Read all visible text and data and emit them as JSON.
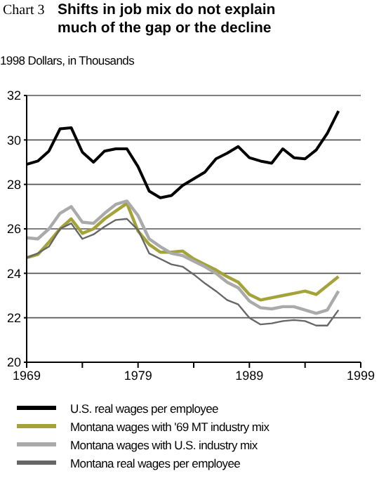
{
  "chart_data": {
    "type": "line",
    "title": "Shifts in job mix do not explain much of the gap or the decline",
    "annotations": [
      "Chart 3"
    ],
    "ylabel": "1998 Dollars, in Thousands",
    "x": [
      1969,
      1970,
      1971,
      1972,
      1973,
      1974,
      1975,
      1976,
      1977,
      1978,
      1979,
      1980,
      1981,
      1982,
      1983,
      1984,
      1985,
      1986,
      1987,
      1988,
      1989,
      1990,
      1991,
      1992,
      1993,
      1994,
      1995,
      1996,
      1997
    ],
    "series": [
      {
        "name": "U.S. real wages  per employee",
        "color": "#000000",
        "values": [
          28.9,
          29.05,
          29.5,
          30.5,
          30.55,
          29.45,
          29.0,
          29.5,
          29.6,
          29.6,
          28.8,
          27.7,
          27.4,
          27.5,
          27.95,
          28.25,
          28.55,
          29.15,
          29.4,
          29.7,
          29.2,
          29.05,
          28.95,
          29.6,
          29.2,
          29.15,
          29.55,
          30.3,
          31.3
        ]
      },
      {
        "name": "Montana wages with '69 MT industry mix",
        "color": "#a3a33a",
        "values": [
          24.7,
          24.85,
          25.4,
          26.0,
          26.45,
          25.8,
          26.0,
          26.45,
          26.8,
          27.15,
          25.9,
          25.3,
          24.95,
          24.95,
          25.0,
          24.65,
          24.4,
          24.15,
          23.85,
          23.6,
          23.05,
          22.8,
          22.9,
          23.0,
          23.1,
          23.2,
          23.05,
          23.45,
          23.85
        ]
      },
      {
        "name": "Montana wages with  U.S. industry mix",
        "color": "#aaaaaa",
        "values": [
          25.6,
          25.55,
          26.0,
          26.7,
          27.0,
          26.3,
          26.25,
          26.7,
          27.1,
          27.25,
          26.6,
          25.55,
          25.2,
          24.9,
          24.8,
          24.55,
          24.3,
          24.0,
          23.6,
          23.35,
          22.75,
          22.45,
          22.4,
          22.5,
          22.5,
          22.35,
          22.2,
          22.35,
          23.2
        ]
      },
      {
        "name": "Montana real wages per employee",
        "color": "#666666",
        "values": [
          24.7,
          24.9,
          25.2,
          26.0,
          26.25,
          25.55,
          25.75,
          26.1,
          26.4,
          26.45,
          25.95,
          24.9,
          24.65,
          24.4,
          24.3,
          23.95,
          23.55,
          23.2,
          22.8,
          22.6,
          22.0,
          21.7,
          21.75,
          21.85,
          21.9,
          21.85,
          21.65,
          21.65,
          22.35
        ]
      }
    ],
    "xlim": [
      1969,
      1999
    ],
    "xticks": [
      1969,
      {
        "value": 1974,
        "label": null
      },
      1979,
      {
        "value": 1984,
        "label": null
      },
      1989,
      {
        "value": 1994,
        "label": null
      },
      1999
    ],
    "ylim": [
      20,
      32
    ],
    "yticks": [
      20,
      22,
      24,
      26,
      28,
      30,
      32
    ],
    "grid": "y",
    "legend": "bottom",
    "marker": "none",
    "line_style": "solid"
  }
}
